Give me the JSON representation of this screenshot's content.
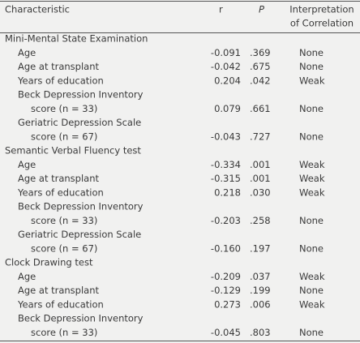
{
  "header": {
    "characteristic": "Characteristic",
    "r": "r",
    "p": "P",
    "interpretation": [
      "Interpretation",
      "of Correlation"
    ]
  },
  "sections": [
    {
      "title": "Mini-Mental State Examination",
      "rows": [
        {
          "label": [
            "Age"
          ],
          "r": "-0.091",
          "p": ".369",
          "interpretation": "None"
        },
        {
          "label": [
            "Age at transplant"
          ],
          "r": "-0.042",
          "p": ".675",
          "interpretation": "None"
        },
        {
          "label": [
            "Years of education"
          ],
          "r": "0.204",
          "p": ".042",
          "interpretation": "Weak"
        },
        {
          "label": [
            "Beck Depression Inventory",
            "score (n = 33)"
          ],
          "r": "0.079",
          "p": ".661",
          "interpretation": "None"
        },
        {
          "label": [
            "Geriatric Depression Scale",
            "score (n = 67)"
          ],
          "r": "-0.043",
          "p": ".727",
          "interpretation": "None"
        }
      ]
    },
    {
      "title": "Semantic Verbal Fluency test",
      "rows": [
        {
          "label": [
            "Age"
          ],
          "r": "-0.334",
          "p": ".001",
          "interpretation": "Weak"
        },
        {
          "label": [
            "Age at transplant"
          ],
          "r": "-0.315",
          "p": ".001",
          "interpretation": "Weak"
        },
        {
          "label": [
            "Years of education"
          ],
          "r": "0.218",
          "p": ".030",
          "interpretation": "Weak"
        },
        {
          "label": [
            "Beck Depression Inventory",
            "score (n = 33)"
          ],
          "r": "-0.203",
          "p": ".258",
          "interpretation": "None"
        },
        {
          "label": [
            "Geriatric Depression Scale",
            "score (n = 67)"
          ],
          "r": "-0.160",
          "p": ".197",
          "interpretation": "None"
        }
      ]
    },
    {
      "title": "Clock Drawing test",
      "rows": [
        {
          "label": [
            "Age"
          ],
          "r": "-0.209",
          "p": ".037",
          "interpretation": "Weak"
        },
        {
          "label": [
            "Age at transplant"
          ],
          "r": "-0.129",
          "p": ".199",
          "interpretation": "None"
        },
        {
          "label": [
            "Years of education"
          ],
          "r": "0.273",
          "p": ".006",
          "interpretation": "Weak"
        },
        {
          "label": [
            "Beck Depression Inventory",
            "score (n = 33)"
          ],
          "r": "-0.045",
          "p": ".803",
          "interpretation": "None"
        }
      ]
    }
  ]
}
